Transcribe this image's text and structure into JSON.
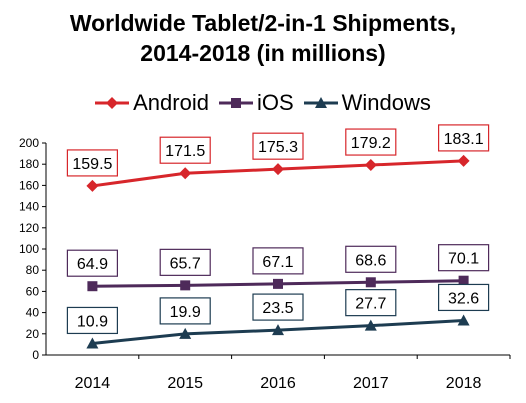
{
  "chart_data": {
    "type": "line",
    "title_lines": [
      "Worldwide Tablet/2-in-1 Shipments,",
      "2014-2018 (in millions)"
    ],
    "categories": [
      "2014",
      "2015",
      "2016",
      "2017",
      "2018"
    ],
    "ylim": [
      0,
      200
    ],
    "yticks": [
      0,
      20,
      40,
      60,
      80,
      100,
      120,
      140,
      160,
      180,
      200
    ],
    "grid": false,
    "legend_position": "top",
    "series": [
      {
        "name": "Android",
        "values": [
          159.5,
          171.5,
          175.3,
          179.2,
          183.1
        ],
        "labels": [
          "159.5",
          "171.5",
          "175.3",
          "179.2",
          "183.1"
        ],
        "color": "#d7262b",
        "marker": "diamond"
      },
      {
        "name": "iOS",
        "values": [
          64.9,
          65.7,
          67.1,
          68.6,
          70.1
        ],
        "labels": [
          "64.9",
          "65.7",
          "67.1",
          "68.6",
          "70.1"
        ],
        "color": "#4e2a5a",
        "marker": "square"
      },
      {
        "name": "Windows",
        "values": [
          10.9,
          19.9,
          23.5,
          27.7,
          32.6
        ],
        "labels": [
          "10.9",
          "19.9",
          "23.5",
          "27.7",
          "32.6"
        ],
        "color": "#1d3c51",
        "marker": "triangle"
      }
    ]
  }
}
